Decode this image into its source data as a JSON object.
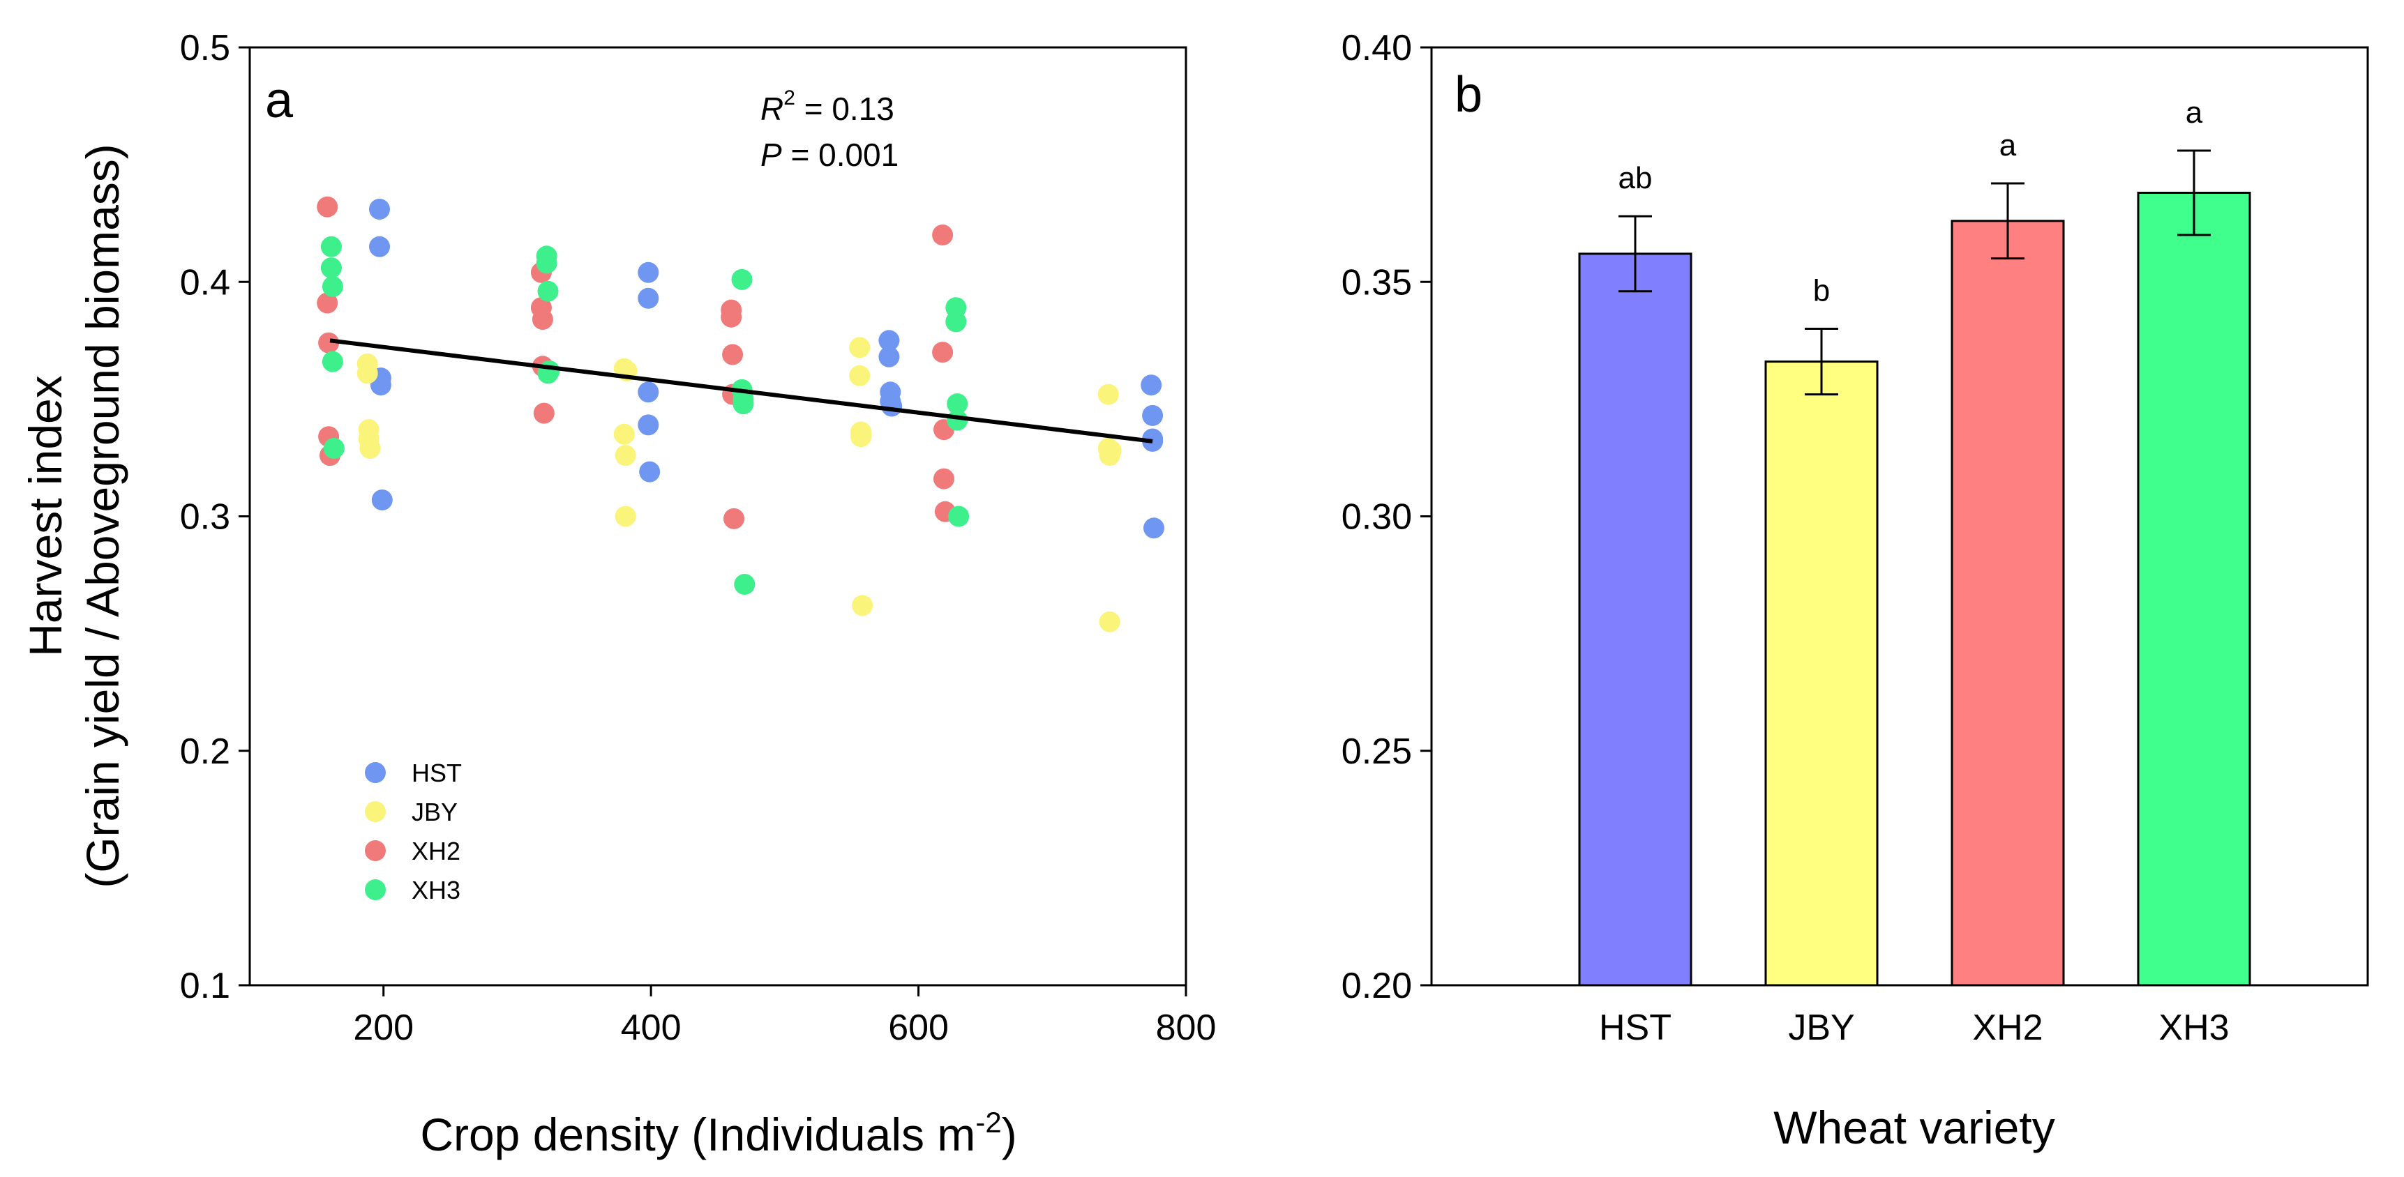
{
  "chart_data": [
    {
      "type": "scatter",
      "panel_label": "a",
      "xlabel_main": "Crop density (Individuals m",
      "xlabel_sup": "-2",
      "xlabel_close": ")",
      "ylabel_line1": "Harvest index",
      "ylabel_line2": "(Grain yield / Aboveground biomass)",
      "xlim": [
        100,
        800
      ],
      "ylim": [
        0.1,
        0.5
      ],
      "xticks": [
        200,
        400,
        600,
        800
      ],
      "yticks": [
        0.1,
        0.2,
        0.3,
        0.4,
        0.5
      ],
      "ytick_labels": [
        "0.1",
        "0.2",
        "0.3",
        "0.4",
        "0.5"
      ],
      "xtick_labels": [
        "200",
        "400",
        "600",
        "800"
      ],
      "stats": {
        "r2_symbol": "R",
        "r2_sup": "2",
        "r2_value": " = 0.13",
        "p_symbol": "P",
        "p_value": " = 0.001"
      },
      "regression": {
        "x": [
          160,
          775
        ],
        "y": [
          0.375,
          0.332
        ]
      },
      "legend_position": "lower-left",
      "series": [
        {
          "name": "HST",
          "color": "#6f96f0",
          "x": [
            197,
            197,
            198,
            198,
            199,
            398,
            398,
            398,
            398,
            399,
            578,
            578,
            579,
            579,
            580,
            774,
            775,
            775,
            775,
            776
          ],
          "y": [
            0.431,
            0.415,
            0.359,
            0.356,
            0.307,
            0.404,
            0.393,
            0.353,
            0.339,
            0.319,
            0.375,
            0.368,
            0.353,
            0.349,
            0.347,
            0.356,
            0.343,
            0.333,
            0.332,
            0.295
          ]
        },
        {
          "name": "JBY",
          "color": "#faf47a",
          "x": [
            188,
            188,
            189,
            189,
            190,
            380,
            380,
            381,
            381,
            382,
            556,
            556,
            557,
            557,
            558,
            742,
            742,
            743,
            743,
            744
          ],
          "y": [
            0.365,
            0.361,
            0.337,
            0.333,
            0.329,
            0.363,
            0.335,
            0.326,
            0.3,
            0.362,
            0.372,
            0.36,
            0.336,
            0.334,
            0.262,
            0.352,
            0.329,
            0.326,
            0.255,
            0.328
          ]
        },
        {
          "name": "XH2",
          "color": "#f07a7a",
          "x": [
            158,
            158,
            159,
            159,
            160,
            318,
            318,
            319,
            319,
            320,
            460,
            460,
            461,
            461,
            462,
            618,
            618,
            619,
            619,
            620
          ],
          "y": [
            0.432,
            0.391,
            0.374,
            0.334,
            0.326,
            0.404,
            0.389,
            0.384,
            0.364,
            0.344,
            0.388,
            0.385,
            0.369,
            0.352,
            0.299,
            0.42,
            0.37,
            0.337,
            0.316,
            0.302
          ]
        },
        {
          "name": "XH3",
          "color": "#3df08c",
          "x": [
            161,
            161,
            162,
            162,
            163,
            322,
            322,
            323,
            323,
            324,
            468,
            468,
            469,
            469,
            470,
            628,
            628,
            629,
            629,
            630
          ],
          "y": [
            0.415,
            0.406,
            0.398,
            0.366,
            0.329,
            0.411,
            0.408,
            0.396,
            0.361,
            0.362,
            0.401,
            0.354,
            0.35,
            0.348,
            0.271,
            0.389,
            0.383,
            0.348,
            0.341,
            0.3
          ]
        }
      ]
    },
    {
      "type": "bar",
      "panel_label": "b",
      "xlabel": "Wheat variety",
      "ylabel": "",
      "categories": [
        "HST",
        "JBY",
        "XH2",
        "XH3"
      ],
      "values": [
        0.356,
        0.333,
        0.363,
        0.369
      ],
      "errors": [
        0.008,
        0.007,
        0.008,
        0.009
      ],
      "significance": [
        "ab",
        "b",
        "a",
        "a"
      ],
      "colors": [
        "#8080ff",
        "#ffff80",
        "#ff8080",
        "#40ff8c"
      ],
      "ylim": [
        0.2,
        0.4
      ],
      "yticks": [
        0.2,
        0.25,
        0.3,
        0.35,
        0.4
      ],
      "ytick_labels": [
        "0.20",
        "0.25",
        "0.30",
        "0.35",
        "0.40"
      ]
    }
  ]
}
